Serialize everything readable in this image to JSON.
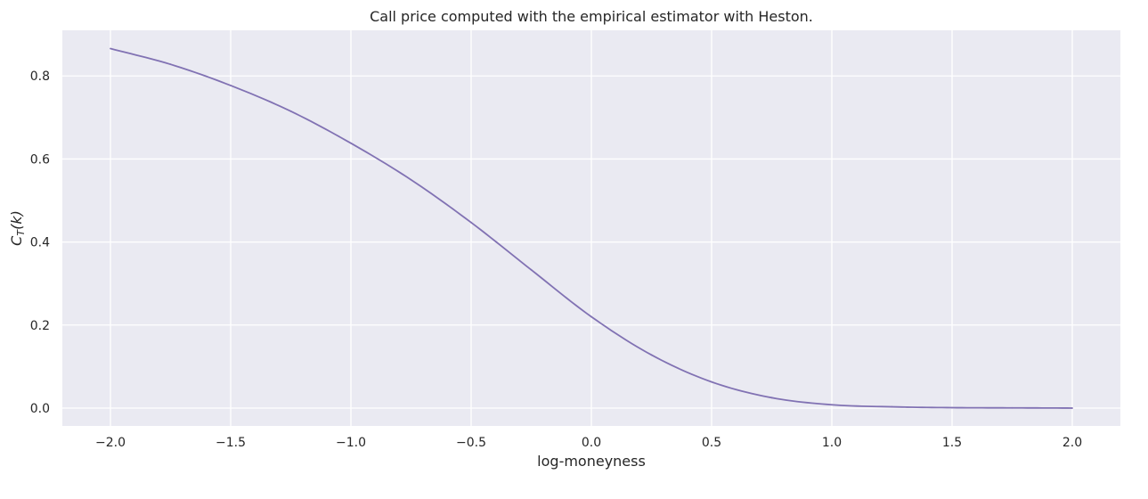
{
  "chart_data": {
    "type": "line",
    "title": "Call price computed with the empirical estimator with Heston.",
    "xlabel": "log-moneyness",
    "ylabel": "C_T(k)",
    "ylabel_display": "C",
    "ylabel_sub": "T",
    "ylabel_tail": "(k)",
    "xlim": [
      -2.2,
      2.2
    ],
    "ylim": [
      -0.043,
      0.91
    ],
    "x_ticks": [
      -2.0,
      -1.5,
      -1.0,
      -0.5,
      0.0,
      0.5,
      1.0,
      1.5,
      2.0
    ],
    "x_tick_labels": [
      "−2.0",
      "−1.5",
      "−1.0",
      "−0.5",
      "0.0",
      "0.5",
      "1.0",
      "1.5",
      "2.0"
    ],
    "y_ticks": [
      0.0,
      0.2,
      0.4,
      0.6,
      0.8
    ],
    "y_tick_labels": [
      "0.0",
      "0.2",
      "0.4",
      "0.6",
      "0.8"
    ],
    "grid": true,
    "legend": "none",
    "colors": {
      "background": "#eaeaf2",
      "grid": "#ffffff",
      "line": "#8172b3",
      "text": "#262626"
    },
    "series": [
      {
        "x": [
          -2.0,
          -1.75,
          -1.5,
          -1.25,
          -1.0,
          -0.75,
          -0.5,
          -0.25,
          0.0,
          0.25,
          0.5,
          0.75,
          1.0,
          1.25,
          1.5,
          1.75,
          2.0
        ],
        "values": [
          0.866,
          0.828,
          0.777,
          0.715,
          0.638,
          0.55,
          0.447,
          0.333,
          0.22,
          0.128,
          0.063,
          0.025,
          0.008,
          0.003,
          0.001,
          0.0005,
          0.0
        ]
      }
    ]
  }
}
